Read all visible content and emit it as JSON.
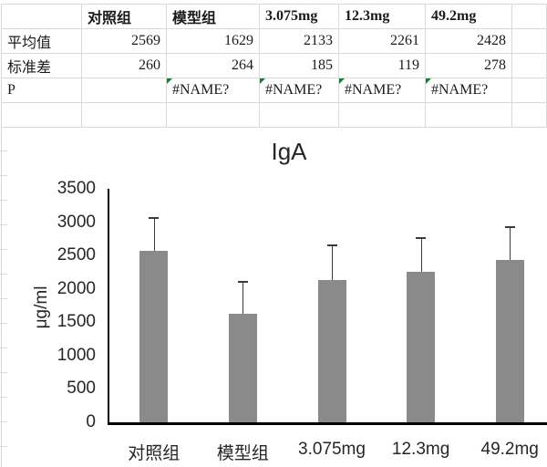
{
  "sheet": {
    "table": {
      "corner": "",
      "columns": [
        "对照组",
        "模型组",
        "3.075mg",
        "12.3mg",
        "49.2mg"
      ],
      "rows": [
        {
          "label": "平均值",
          "values": [
            "2569",
            "1629",
            "2133",
            "2261",
            "2428"
          ]
        },
        {
          "label": "标准差",
          "values": [
            "260",
            "264",
            "185",
            "119",
            "278"
          ]
        },
        {
          "label": "P",
          "values": [
            "",
            "#NAME?",
            "#NAME?",
            "#NAME?",
            "#NAME?"
          ]
        }
      ]
    }
  },
  "chart_data": {
    "type": "bar",
    "title": "IgA",
    "ylabel": "μg/ml",
    "xlabel": "",
    "categories": [
      "对照组",
      "模型组",
      "3.075mg",
      "12.3mg",
      "49.2mg"
    ],
    "series": [
      {
        "name": "平均值",
        "values": [
          2569,
          1629,
          2133,
          2261,
          2428
        ]
      },
      {
        "name": "标准差",
        "values": [
          260,
          264,
          185,
          119,
          278
        ]
      }
    ],
    "error_bar_top_values": [
      3080,
      2120,
      2660,
      2775,
      2935
    ],
    "ylim": [
      0,
      3500
    ],
    "yticks": [
      0,
      500,
      1000,
      1500,
      2000,
      2500,
      3000,
      3500
    ],
    "grid": false,
    "legend": "none",
    "bar_color": "#8a8a8a",
    "error_bar_color": "#3a3a3a",
    "axis_color": "#000000"
  },
  "colors": {
    "gridline": "#d9d9d9",
    "error_indicator": "#1e7b34",
    "text": "#1a1a1a"
  }
}
